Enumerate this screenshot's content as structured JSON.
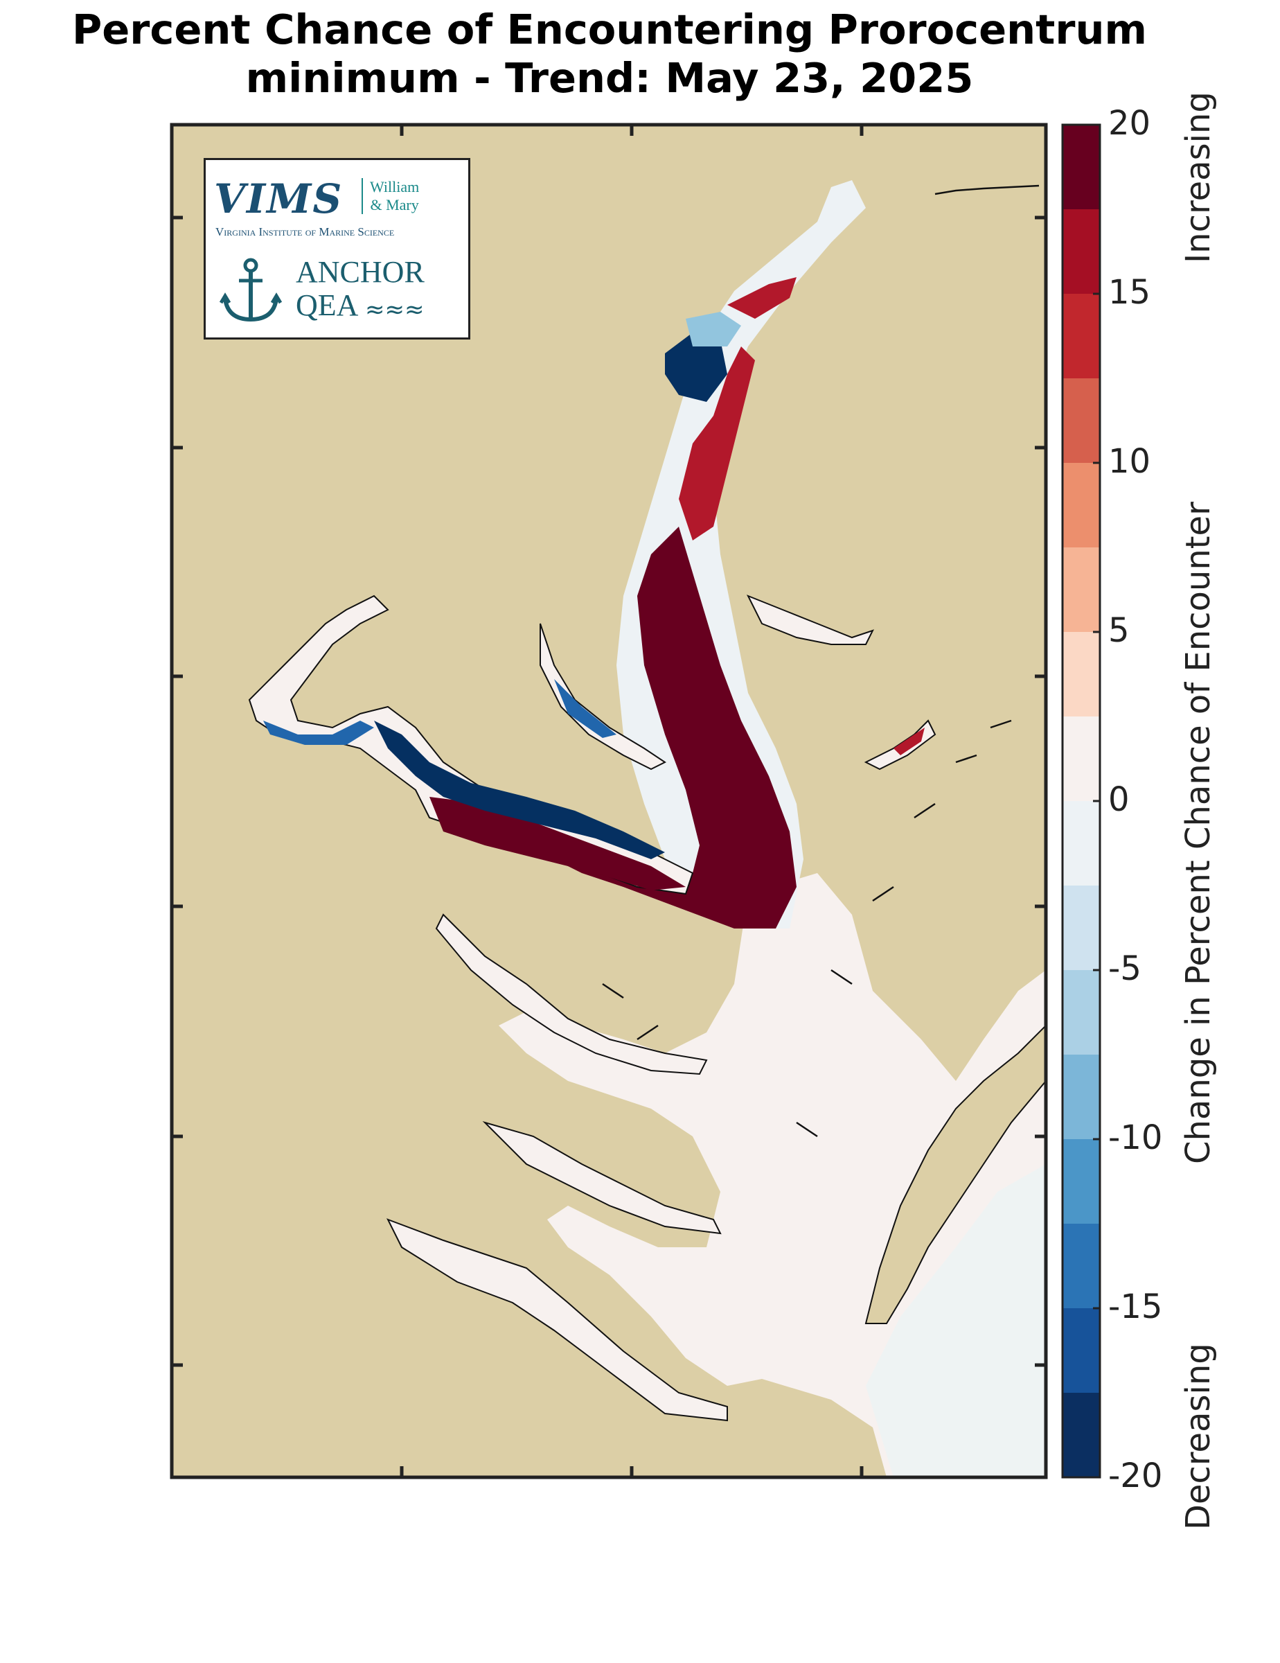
{
  "title_line1": "Percent Chance of Encountering Prorocentrum",
  "title_line2": "minimum - Trend: May 23, 2025",
  "colorbar": {
    "label": "Change in Percent Chance of Encounter",
    "top_label": "Increasing",
    "bottom_label": "Decreasing",
    "ticks": [
      "20",
      "15",
      "10",
      "5",
      "0",
      "-5",
      "-10",
      "-15",
      "-20"
    ],
    "colors": [
      "#67001f",
      "#a50f24",
      "#c1272d",
      "#d6604d",
      "#ec8f6d",
      "#f6b495",
      "#fbd8c5",
      "#f7f1ef",
      "#edf2f5",
      "#cfe2ef",
      "#abd0e5",
      "#7cb6d8",
      "#4b96c8",
      "#2b74b5",
      "#17539a",
      "#0b2f61"
    ],
    "range": [
      -20,
      20
    ]
  },
  "logo": {
    "vims": "VIMS",
    "wm_line1": "William",
    "wm_line2": "& Mary",
    "subtitle": "Virginia Institute of Marine Science",
    "anchor_line1": "ANCHOR",
    "anchor_line2": "QEA",
    "waves": "≈≈≈"
  },
  "map_colors": {
    "land": "#dccfa6",
    "neutral_water": "#f7f1ef",
    "increasing": "#67001f",
    "increasing_mid": "#b2182b",
    "decreasing": "#053061",
    "decreasing_light": "#92c5de",
    "frame": "#222222"
  }
}
